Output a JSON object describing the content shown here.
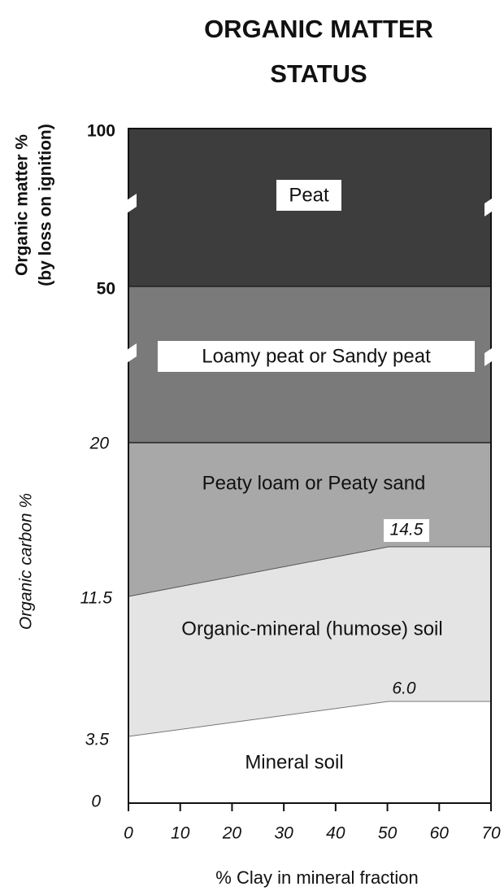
{
  "title": [
    "ORGANIC MATTER",
    "STATUS"
  ],
  "organic_matter_axis": {
    "label": [
      "Organic matter %",
      "(by loss on ignition)"
    ],
    "ticks": [
      "100",
      "50"
    ]
  },
  "organic_carbon_axis": {
    "label": "Organic carbon %",
    "ticks": [
      "20",
      "11.5",
      "3.5",
      "0"
    ]
  },
  "x_axis": {
    "label": "% Clay in mineral fraction",
    "ticks": [
      "0",
      "10",
      "20",
      "30",
      "40",
      "50",
      "60",
      "70"
    ]
  },
  "zones": [
    "Peat",
    "Loamy peat or Sandy peat",
    "Peaty loam or Peaty sand",
    "Organic-mineral (humose) soil",
    "Mineral soil"
  ],
  "boundary_labels": [
    "14.5",
    "6.0"
  ]
}
